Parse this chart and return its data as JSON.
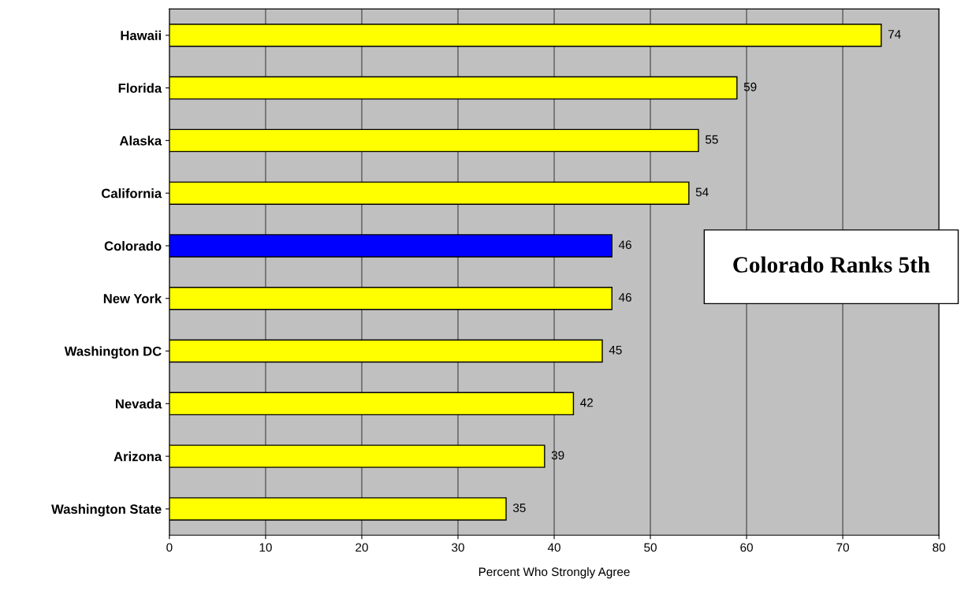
{
  "chart_data": {
    "type": "bar",
    "orientation": "horizontal",
    "xlabel": "Percent Who Strongly Agree",
    "categories": [
      "Hawaii",
      "Florida",
      "Alaska",
      "California",
      "Colorado",
      "New York",
      "Washington DC",
      "Nevada",
      "Arizona",
      "Washington State"
    ],
    "values": [
      74,
      59,
      55,
      54,
      46,
      46,
      45,
      42,
      39,
      35
    ],
    "colors": [
      "#ffff00",
      "#ffff00",
      "#ffff00",
      "#ffff00",
      "#0000ff",
      "#ffff00",
      "#ffff00",
      "#ffff00",
      "#ffff00",
      "#ffff00"
    ],
    "xlim": [
      0,
      80
    ],
    "xticks": [
      0,
      10,
      20,
      30,
      40,
      50,
      60,
      70,
      80
    ],
    "grid": "x",
    "data_labels": true,
    "legend": false,
    "annotations": [
      "Colorado Ranks 5th"
    ]
  }
}
